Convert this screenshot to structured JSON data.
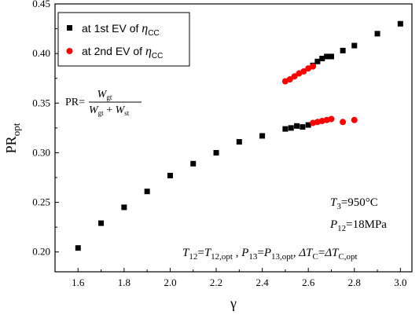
{
  "chart_data": {
    "type": "scatter",
    "title": "",
    "xlabel": "γ",
    "ylabel": "PR",
    "ylabel_sub": "opt",
    "xlim": [
      1.5,
      3.05
    ],
    "ylim": [
      0.18,
      0.45
    ],
    "x_ticks": [
      1.6,
      1.8,
      2.0,
      2.2,
      2.4,
      2.6,
      2.8,
      3.0
    ],
    "y_ticks": [
      0.2,
      0.25,
      0.3,
      0.35,
      0.4,
      0.45
    ],
    "x_tick_labels": [
      "1.6",
      "1.8",
      "2.0",
      "2.2",
      "2.4",
      "2.6",
      "2.8",
      "3.0"
    ],
    "y_tick_labels": [
      "0.20",
      "0.25",
      "0.30",
      "0.35",
      "0.40",
      "0.45"
    ],
    "grid": false,
    "legend_position": "top-left",
    "series": [
      {
        "name_prefix": "at 1st EV of ",
        "name_symbol": "η",
        "name_sub": "CC",
        "marker": "square",
        "color": "#000000",
        "points": [
          [
            1.6,
            0.204
          ],
          [
            1.7,
            0.229
          ],
          [
            1.8,
            0.245
          ],
          [
            1.9,
            0.261
          ],
          [
            2.0,
            0.277
          ],
          [
            2.1,
            0.289
          ],
          [
            2.2,
            0.3
          ],
          [
            2.3,
            0.311
          ],
          [
            2.4,
            0.317
          ],
          [
            2.5,
            0.324
          ],
          [
            2.525,
            0.325
          ],
          [
            2.55,
            0.327
          ],
          [
            2.575,
            0.326
          ],
          [
            2.6,
            0.328
          ],
          [
            2.62,
            0.388
          ],
          [
            2.64,
            0.392
          ],
          [
            2.66,
            0.395
          ],
          [
            2.68,
            0.397
          ],
          [
            2.7,
            0.397
          ],
          [
            2.75,
            0.403
          ],
          [
            2.8,
            0.408
          ],
          [
            2.9,
            0.42
          ],
          [
            3.0,
            0.43
          ]
        ]
      },
      {
        "name_prefix": "at 2nd EV of ",
        "name_symbol": "η",
        "name_sub": "CC",
        "marker": "circle",
        "color": "#ff0000",
        "points": [
          [
            2.5,
            0.372
          ],
          [
            2.52,
            0.374
          ],
          [
            2.54,
            0.377
          ],
          [
            2.56,
            0.38
          ],
          [
            2.58,
            0.382
          ],
          [
            2.6,
            0.385
          ],
          [
            2.62,
            0.387
          ],
          [
            2.62,
            0.33
          ],
          [
            2.64,
            0.331
          ],
          [
            2.66,
            0.332
          ],
          [
            2.68,
            0.333
          ],
          [
            2.7,
            0.334
          ],
          [
            2.75,
            0.331
          ],
          [
            2.8,
            0.333
          ]
        ]
      }
    ],
    "annotations": {
      "formula_lhs": "PR=",
      "formula_num": "W",
      "formula_num_sub": "gt",
      "formula_den_a": "W",
      "formula_den_a_sub": "gt",
      "formula_plus": " + ",
      "formula_den_b": "W",
      "formula_den_b_sub": "st",
      "t3_var": "T",
      "t3_sub": "3",
      "t3_val": "=950°C",
      "p12_var": "P",
      "p12_sub": "12",
      "p12_val": "=18MPa",
      "cond_a_var": "T",
      "cond_a_sub": "12",
      "cond_a_eq": "=",
      "cond_a_rhs": "T",
      "cond_a_rhs_sub": "12,opt",
      "cond_sep": " , ",
      "cond_b_var": "P",
      "cond_b_sub": "13",
      "cond_b_eq": "=",
      "cond_b_rhs": "P",
      "cond_b_rhs_sub": "13,opt",
      "cond_sep2": ", ",
      "cond_c_var": "ΔT",
      "cond_c_sub": "C",
      "cond_c_eq": "=",
      "cond_c_rhs": "ΔT",
      "cond_c_rhs_sub": "C,opt"
    }
  }
}
